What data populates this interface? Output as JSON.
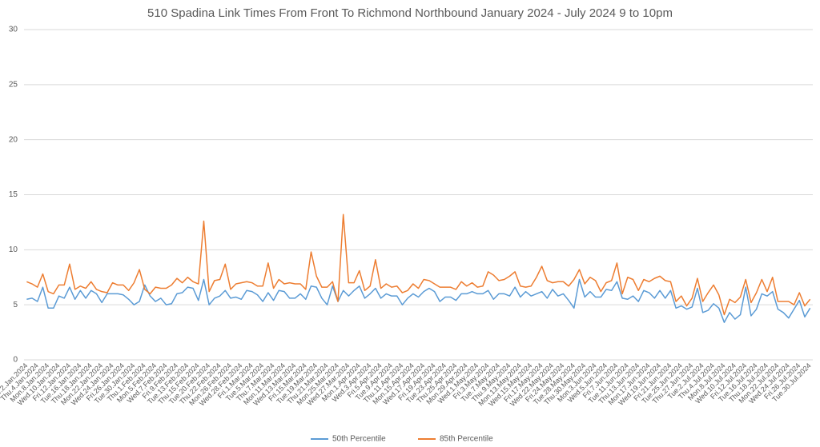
{
  "chart_data": {
    "type": "line",
    "title": "510 Spadina Link Times From Front To Richmond Northbound January 2024 - July 2024 9 to 10pm",
    "categories": [
      "Tue.2.Jan.2024",
      null,
      "Thu.4.Jan.2024",
      null,
      "Mon.8.Jan.2024",
      null,
      "Wed.10.Jan.2024",
      null,
      "Fri.12.Jan.2024",
      null,
      "Tue.16.Jan.2024",
      null,
      "Thu.18.Jan.2024",
      null,
      "Mon.22.Jan.2024",
      null,
      "Wed.24.Jan.2024",
      null,
      "Fri.26.Jan.2024",
      null,
      "Tue.30.Jan.2024",
      null,
      "Thu.1.Feb.2024",
      null,
      "Mon.5.Feb.2024",
      null,
      "Wed.7.Feb.2024",
      null,
      "Fri.9.Feb.2024",
      null,
      "Tue.13.Feb.2024",
      null,
      "Thu.15.Feb.2024",
      null,
      "Tue.20.Feb.2024",
      null,
      "Thu.22.Feb.2024",
      null,
      "Mon.26.Feb.2024",
      null,
      "Wed.28.Feb.2024",
      null,
      "Fri.1.Mar.2024",
      null,
      "Tue.5.Mar.2024",
      null,
      "Thu.7.Mar.2024",
      null,
      "Mon.11.Mar.2024",
      null,
      "Wed.13.Mar.2024",
      null,
      "Fri.15.Mar.2024",
      null,
      "Tue.19.Mar.2024",
      null,
      "Thu.21.Mar.2024",
      null,
      "Mon.25.Mar.2024",
      null,
      "Wed.27.Mar.2024",
      null,
      "Mon.1.Apr.2024",
      null,
      "Wed.3.Apr.2024",
      null,
      "Fri.5.Apr.2024",
      null,
      "Tue.9.Apr.2024",
      null,
      "Thu.11.Apr.2024",
      null,
      "Mon.15.Apr.2024",
      null,
      "Wed.17.Apr.2024",
      null,
      "Fri.19.Apr.2024",
      null,
      "Tue.23.Apr.2024",
      null,
      "Thu.25.Apr.2024",
      null,
      "Mon.29.Apr.2024",
      null,
      "Wed.1.May.2024",
      null,
      "Fri.3.May.2024",
      null,
      "Tue.7.May.2024",
      null,
      "Thu.9.May.2024",
      null,
      "Mon.13.May.2024",
      null,
      "Wed.15.May.2024",
      null,
      "Fri.17.May.2024",
      null,
      "Wed.22.May.2024",
      null,
      "Fri.24.May.2024",
      null,
      "Tue.28.May.2024",
      null,
      "Thu.30.May.2024",
      null,
      "Mon.3.Jun.2024",
      null,
      "Wed.5.Jun.2024",
      null,
      "Fri.7.Jun.2024",
      null,
      "Tue.11.Jun.2024",
      null,
      "Thu.13.Jun.2024",
      null,
      "Mon.17.Jun.2024",
      null,
      "Wed.19.Jun.2024",
      null,
      "Fri.21.Jun.2024",
      null,
      "Tue.25.Jun.2024",
      null,
      "Thu.27.Jun.2024",
      null,
      "Tue.2.Jul.2024",
      null,
      "Thu.4.Jul.2024",
      null,
      "Mon.8.Jul.2024",
      null,
      "Wed.10.Jul.2024",
      null,
      "Fri.12.Jul.2024",
      null,
      "Tue.16.Jul.2024",
      null,
      "Thu.18.Jul.2024",
      null,
      "Mon.22.Jul.2024",
      null,
      "Wed.24.Jul.2024",
      null,
      "Fri.26.Jul.2024",
      null,
      "Tue.30.Jul.2024"
    ],
    "series": [
      {
        "name": "50th Percentile",
        "color": "#5b9bd5",
        "values": [
          5.5,
          5.6,
          5.3,
          6.6,
          4.7,
          4.7,
          5.8,
          5.6,
          6.6,
          5.5,
          6.3,
          5.6,
          6.3,
          6.0,
          5.2,
          6.0,
          6.0,
          6.0,
          5.9,
          5.5,
          5.0,
          5.3,
          6.8,
          5.8,
          5.3,
          5.6,
          5.0,
          5.1,
          6.0,
          6.1,
          6.6,
          6.5,
          5.4,
          7.3,
          5.0,
          5.6,
          5.8,
          6.3,
          5.6,
          5.7,
          5.5,
          6.3,
          6.2,
          5.9,
          5.3,
          6.1,
          5.4,
          6.3,
          6.2,
          5.6,
          5.6,
          6.0,
          5.5,
          6.7,
          6.6,
          5.6,
          5.0,
          6.7,
          5.3,
          6.3,
          5.8,
          6.3,
          6.7,
          5.6,
          6.0,
          6.5,
          5.6,
          6.0,
          5.8,
          5.8,
          5.0,
          5.6,
          6.0,
          5.7,
          6.2,
          6.5,
          6.2,
          5.3,
          5.7,
          5.7,
          5.4,
          6.0,
          6.0,
          6.2,
          6.0,
          6.0,
          6.3,
          5.5,
          6.0,
          6.0,
          5.8,
          6.6,
          5.7,
          6.2,
          5.8,
          6.0,
          6.2,
          5.6,
          6.4,
          5.8,
          6.0,
          5.4,
          4.7,
          7.3,
          5.7,
          6.2,
          5.7,
          5.7,
          6.4,
          6.3,
          7.1,
          5.6,
          5.5,
          5.8,
          5.3,
          6.3,
          6.1,
          5.6,
          6.3,
          5.6,
          6.3,
          4.7,
          4.9,
          4.6,
          4.8,
          6.5,
          4.3,
          4.5,
          5.1,
          4.7,
          3.4,
          4.3,
          3.7,
          4.1,
          6.6,
          4.0,
          4.6,
          6.0,
          5.8,
          6.2,
          4.6,
          4.3,
          3.8,
          4.6,
          5.4,
          3.9,
          4.7
        ]
      },
      {
        "name": "85th Percentile",
        "color": "#ed7d31",
        "values": [
          7.1,
          6.9,
          6.6,
          7.8,
          6.2,
          6.0,
          6.8,
          6.8,
          8.7,
          6.4,
          6.7,
          6.5,
          7.1,
          6.4,
          6.2,
          6.1,
          7.0,
          6.8,
          6.8,
          6.3,
          7.0,
          8.2,
          6.4,
          6.0,
          6.6,
          6.5,
          6.5,
          6.8,
          7.4,
          7.0,
          7.5,
          7.1,
          6.9,
          12.6,
          6.2,
          7.2,
          7.3,
          8.7,
          6.4,
          6.9,
          7.0,
          7.1,
          7.0,
          6.7,
          6.7,
          8.8,
          6.5,
          7.3,
          6.9,
          7.0,
          6.9,
          6.9,
          6.4,
          9.8,
          7.6,
          6.6,
          6.6,
          7.1,
          5.3,
          13.2,
          7.0,
          7.0,
          8.1,
          6.3,
          6.7,
          9.1,
          6.5,
          6.9,
          6.6,
          6.7,
          6.1,
          6.3,
          6.9,
          6.5,
          7.3,
          7.2,
          6.9,
          6.6,
          6.6,
          6.6,
          6.4,
          7.1,
          6.7,
          7.0,
          6.6,
          6.7,
          8.0,
          7.7,
          7.2,
          7.3,
          7.6,
          8.0,
          6.7,
          6.6,
          6.7,
          7.5,
          8.5,
          7.2,
          7.0,
          7.1,
          7.1,
          6.7,
          7.3,
          8.2,
          6.9,
          7.5,
          7.2,
          6.2,
          7.0,
          7.2,
          8.8,
          6.0,
          7.5,
          7.3,
          6.3,
          7.3,
          7.1,
          7.4,
          7.6,
          7.2,
          7.1,
          5.3,
          5.8,
          4.9,
          5.6,
          7.4,
          5.3,
          6.1,
          6.8,
          5.9,
          4.1,
          5.5,
          5.2,
          5.7,
          7.3,
          5.2,
          6.1,
          7.3,
          6.2,
          7.5,
          5.3,
          5.3,
          5.3,
          5.0,
          6.1,
          4.9,
          5.5
        ]
      }
    ],
    "ylim": [
      0,
      30
    ],
    "yticks": [
      0,
      5,
      10,
      15,
      20,
      25,
      30
    ],
    "grid": true,
    "legend": "bottom"
  }
}
